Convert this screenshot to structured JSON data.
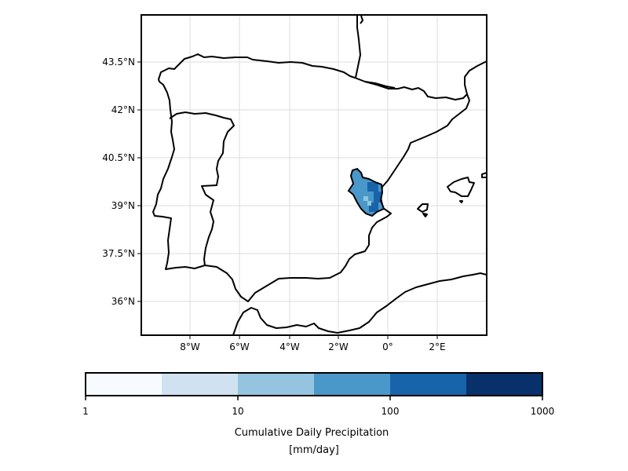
{
  "map": {
    "lat_ticks": [
      "43.5°N",
      "42°N",
      "40.5°N",
      "39°N",
      "37.5°N",
      "36°N"
    ],
    "lon_ticks": [
      "8°W",
      "6°W",
      "4°W",
      "2°W",
      "0°",
      "2°E"
    ],
    "extent": {
      "lon": [
        -10,
        4.2
      ],
      "lat": [
        35.0,
        44.9
      ]
    },
    "gridlines": true,
    "highlighted_region": "Valencia",
    "coastline_color": "#000000"
  },
  "colorbar": {
    "label_line1": "Cumulative Daily Precipitation",
    "label_line2": "[mm/day]",
    "tick_labels": [
      "1",
      "10",
      "100",
      "1000"
    ],
    "scale": "log",
    "range": [
      1,
      1000
    ],
    "bin_colors": [
      "#f7fbff",
      "#d0e1f2",
      "#94c4df",
      "#4a98c9",
      "#1764ab",
      "#08306b"
    ]
  }
}
